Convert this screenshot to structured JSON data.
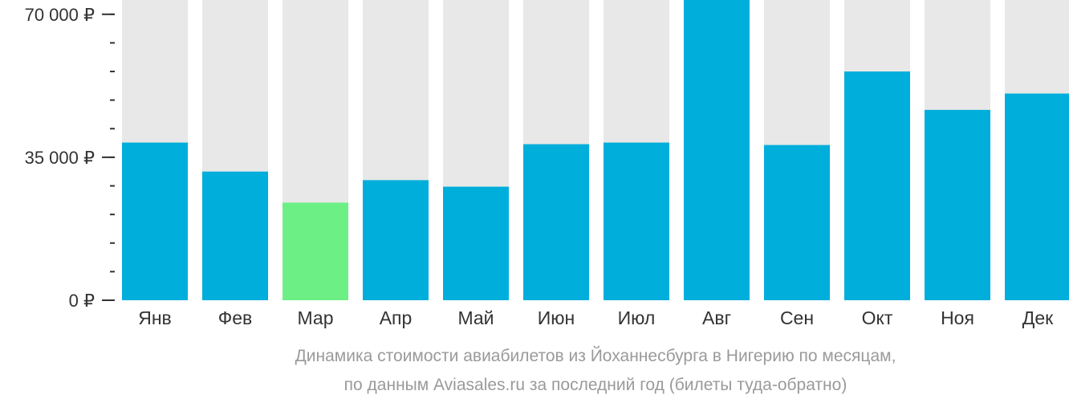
{
  "chart_data": {
    "type": "bar",
    "categories": [
      "Янв",
      "Фев",
      "Мар",
      "Апр",
      "Май",
      "Июн",
      "Июл",
      "Авг",
      "Сен",
      "Окт",
      "Ноя",
      "Дек"
    ],
    "values": [
      38600,
      31500,
      23900,
      29400,
      27800,
      38200,
      38600,
      73500,
      38000,
      56000,
      46600,
      50600
    ],
    "ylim": [
      0,
      73500
    ],
    "yticks": [
      {
        "value": 70000,
        "label": "70 000 ₽"
      },
      {
        "value": 35000,
        "label": "35 000 ₽"
      },
      {
        "value": 0,
        "label": "0 ₽"
      }
    ],
    "minor_tick_step": 7000,
    "colors": {
      "bar": "#00aedb",
      "lowest_bar": "#6cf086",
      "background_bar": "#e8e8e8",
      "tick_text": "#333333",
      "caption_text": "#9a9a9a"
    },
    "highlight_index": 2
  },
  "caption": {
    "line1": "Динамика стоимости авиабилетов из Йоханнесбурга в Нигерию по месяцам,",
    "line2": "по данным Aviasales.ru за последний год (билеты туда-обратно)"
  }
}
